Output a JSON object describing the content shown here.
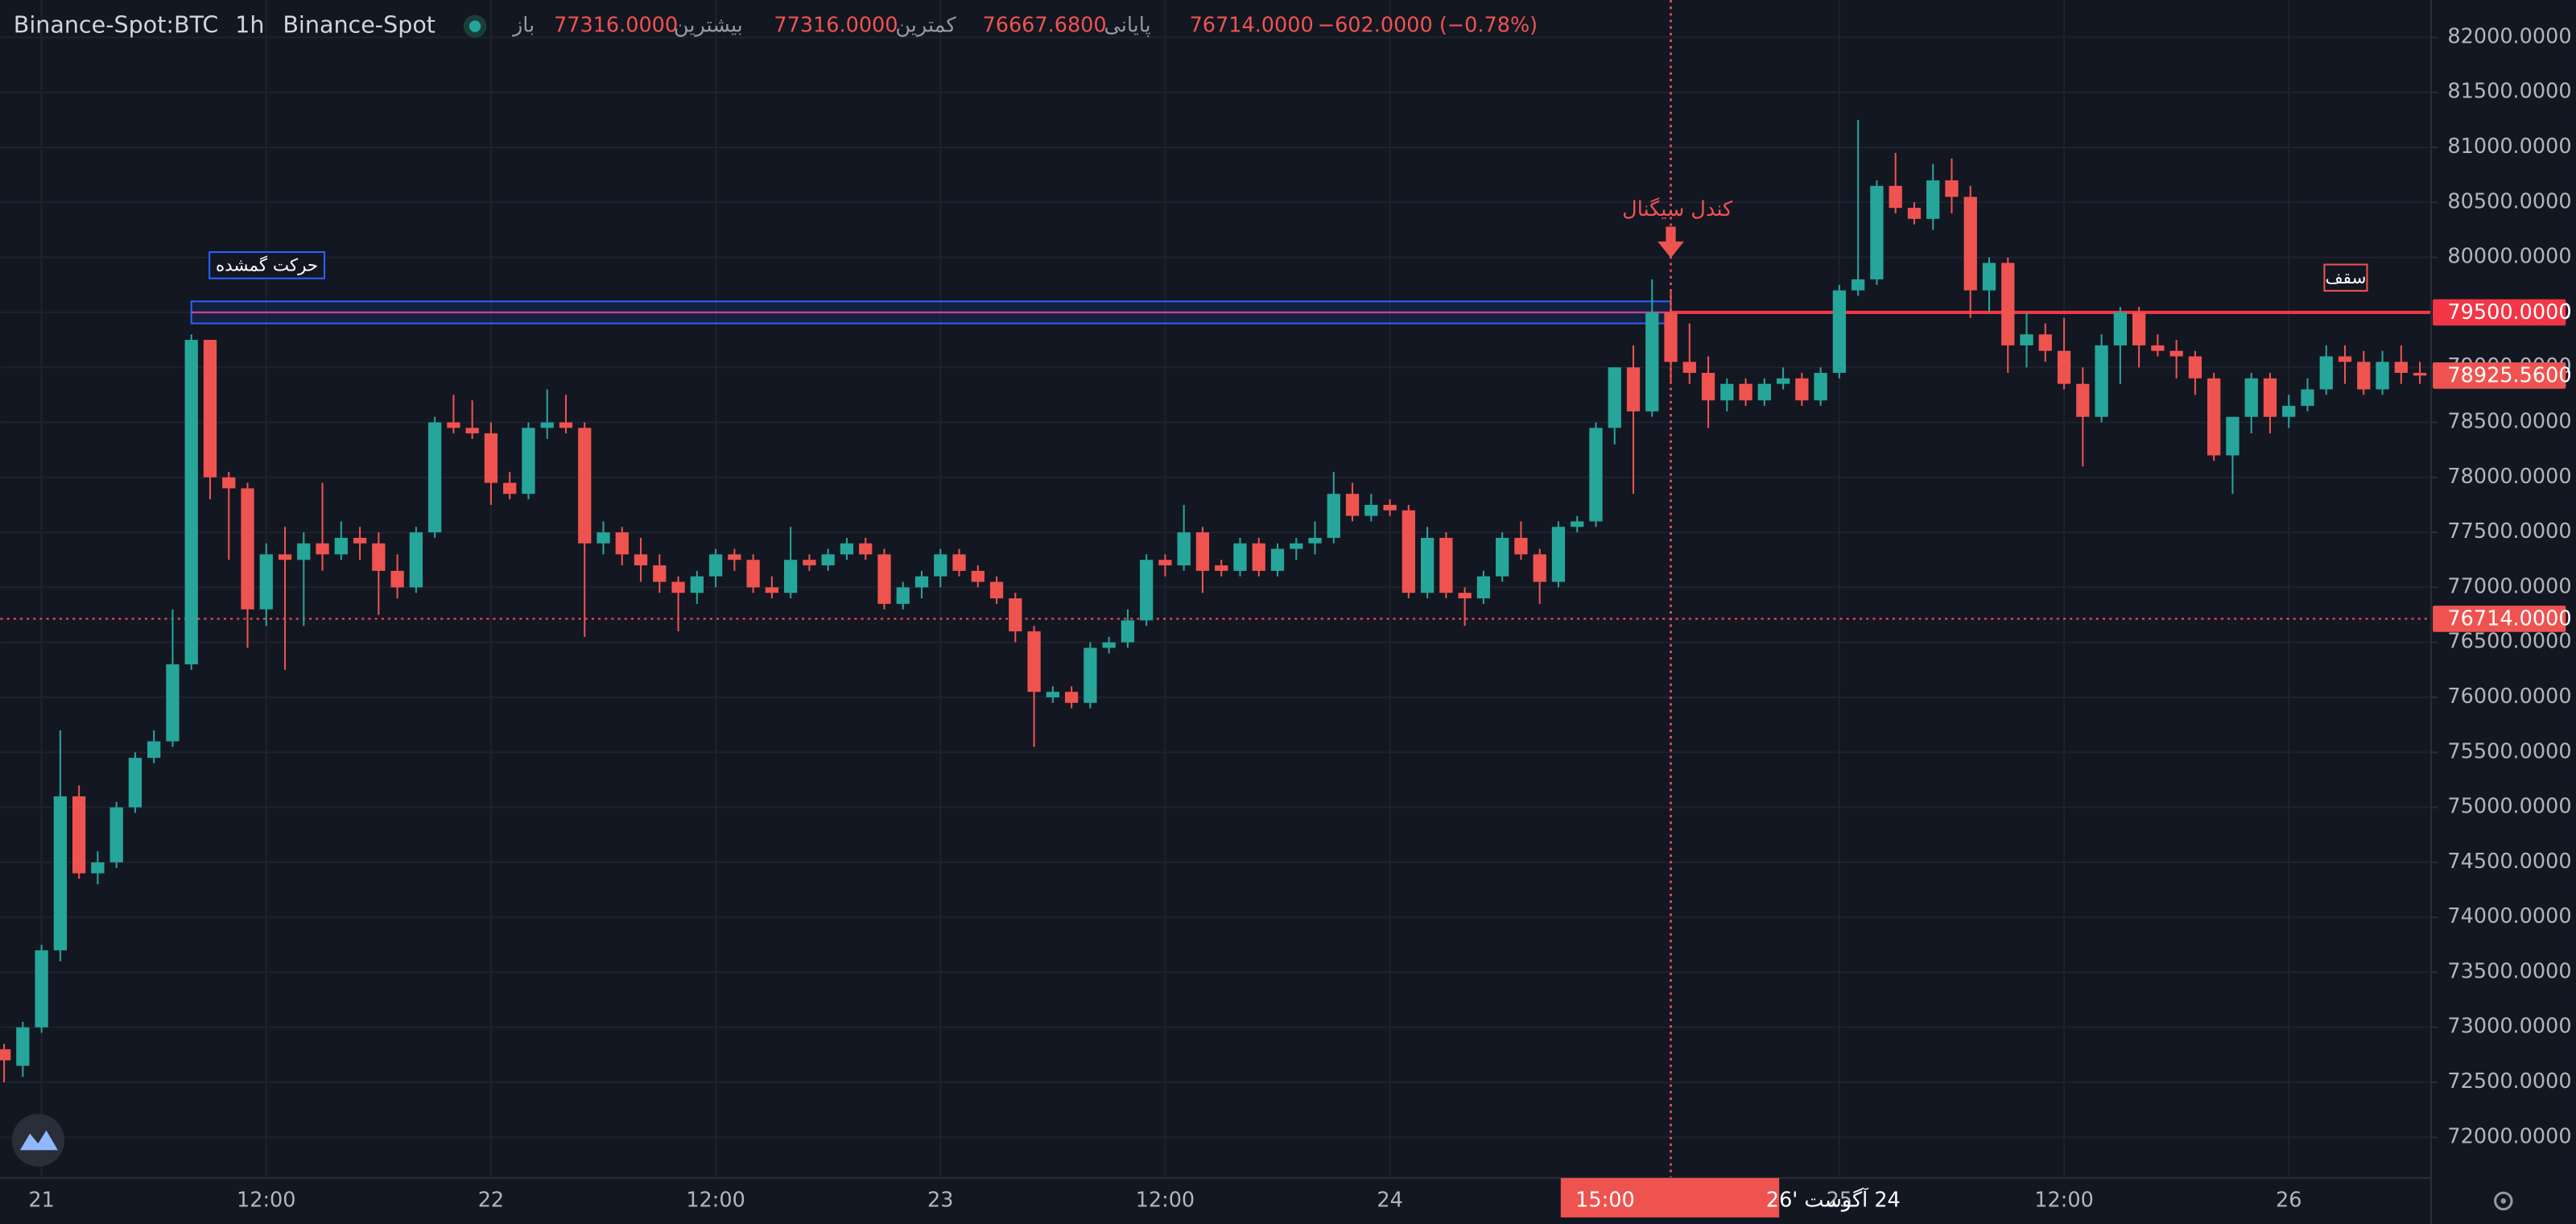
{
  "chart_data": {
    "type": "candlestick",
    "symbol": "Binance-Spot:BTC",
    "interval": "1h",
    "exchange": "Binance-Spot",
    "legend": [
      {
        "label": "باز",
        "value": "77316.0000"
      },
      {
        "label": "بیشترین",
        "value": "77316.0000"
      },
      {
        "label": "کمترین",
        "value": "76667.6800"
      },
      {
        "label": "پایانی",
        "value": "76714.0000"
      }
    ],
    "change": "−602.0000 (−0.78%)",
    "up_color": "#26a69a",
    "down_color": "#ef5350",
    "xlim": [
      -0.2,
      129.6
    ],
    "ylim": [
      71630,
      82340
    ],
    "xticks": [
      {
        "value": 2,
        "label": "21"
      },
      {
        "value": 14,
        "label": "12:00"
      },
      {
        "value": 26,
        "label": "22"
      },
      {
        "value": 38,
        "label": "12:00"
      },
      {
        "value": 50,
        "label": "23"
      },
      {
        "value": 62,
        "label": "12:00"
      },
      {
        "value": 74,
        "label": "24"
      },
      {
        "value": 98,
        "label": "25"
      },
      {
        "value": 110,
        "label": "12:00"
      },
      {
        "value": 122,
        "label": "26"
      }
    ],
    "yticks": [
      {
        "value": 72000,
        "label": "72000.0000"
      },
      {
        "value": 72500,
        "label": "72500.0000"
      },
      {
        "value": 73000,
        "label": "73000.0000"
      },
      {
        "value": 73500,
        "label": "73500.0000"
      },
      {
        "value": 74000,
        "label": "74000.0000"
      },
      {
        "value": 74500,
        "label": "74500.0000"
      },
      {
        "value": 75000,
        "label": "75000.0000"
      },
      {
        "value": 75500,
        "label": "75500.0000"
      },
      {
        "value": 76000,
        "label": "76000.0000"
      },
      {
        "value": 76500,
        "label": "76500.0000"
      },
      {
        "value": 77000,
        "label": "77000.0000"
      },
      {
        "value": 77500,
        "label": "77500.0000"
      },
      {
        "value": 78000,
        "label": "78000.0000"
      },
      {
        "value": 78500,
        "label": "78500.0000"
      },
      {
        "value": 79000,
        "label": "79000.0000"
      },
      {
        "value": 79500,
        "label": "79500.0000"
      },
      {
        "value": 80000,
        "label": "80000.0000"
      },
      {
        "value": 80500,
        "label": "80500.0000"
      },
      {
        "value": 81000,
        "label": "81000.0000"
      },
      {
        "value": 81500,
        "label": "81500.0000"
      },
      {
        "value": 82000,
        "label": "82000.0000"
      }
    ],
    "grid": true,
    "ohlc": [
      [
        72800,
        72850,
        72500,
        72700
      ],
      [
        72650,
        73050,
        72550,
        73000
      ],
      [
        73000,
        73750,
        72950,
        73700
      ],
      [
        73700,
        75700,
        73600,
        75100
      ],
      [
        75100,
        75200,
        74350,
        74400
      ],
      [
        74400,
        74600,
        74300,
        74500
      ],
      [
        74500,
        75050,
        74450,
        75000
      ],
      [
        75000,
        75500,
        74950,
        75450
      ],
      [
        75450,
        75700,
        75400,
        75600
      ],
      [
        75600,
        76800,
        75550,
        76300
      ],
      [
        76300,
        79300,
        76250,
        79250
      ],
      [
        79250,
        79250,
        77800,
        78000
      ],
      [
        78000,
        78050,
        77250,
        77900
      ],
      [
        77900,
        77950,
        76450,
        76800
      ],
      [
        76800,
        77400,
        76650,
        77300
      ],
      [
        77300,
        77550,
        76250,
        77250
      ],
      [
        77250,
        77500,
        76650,
        77400
      ],
      [
        77400,
        77950,
        77150,
        77300
      ],
      [
        77300,
        77600,
        77250,
        77450
      ],
      [
        77450,
        77550,
        77250,
        77400
      ],
      [
        77400,
        77500,
        76750,
        77150
      ],
      [
        77150,
        77300,
        76900,
        77000
      ],
      [
        77000,
        77550,
        76950,
        77500
      ],
      [
        77500,
        78550,
        77450,
        78500
      ],
      [
        78500,
        78750,
        78400,
        78450
      ],
      [
        78450,
        78700,
        78350,
        78400
      ],
      [
        78400,
        78500,
        77750,
        77950
      ],
      [
        77950,
        78050,
        77800,
        77850
      ],
      [
        77850,
        78500,
        77800,
        78450
      ],
      [
        78450,
        78800,
        78350,
        78500
      ],
      [
        78500,
        78750,
        78400,
        78450
      ],
      [
        78450,
        78500,
        76550,
        77400
      ],
      [
        77400,
        77600,
        77300,
        77500
      ],
      [
        77500,
        77550,
        77200,
        77300
      ],
      [
        77300,
        77450,
        77050,
        77200
      ],
      [
        77200,
        77300,
        76950,
        77050
      ],
      [
        77050,
        77100,
        76600,
        76950
      ],
      [
        76950,
        77150,
        76850,
        77100
      ],
      [
        77100,
        77350,
        77000,
        77300
      ],
      [
        77300,
        77350,
        77150,
        77250
      ],
      [
        77250,
        77300,
        76950,
        77000
      ],
      [
        77000,
        77100,
        76900,
        76950
      ],
      [
        76950,
        77550,
        76900,
        77250
      ],
      [
        77250,
        77300,
        77150,
        77200
      ],
      [
        77200,
        77350,
        77150,
        77300
      ],
      [
        77300,
        77450,
        77250,
        77400
      ],
      [
        77400,
        77450,
        77250,
        77300
      ],
      [
        77300,
        77350,
        76800,
        76850
      ],
      [
        76850,
        77050,
        76800,
        77000
      ],
      [
        77000,
        77150,
        76900,
        77100
      ],
      [
        77100,
        77350,
        77000,
        77300
      ],
      [
        77300,
        77350,
        77100,
        77150
      ],
      [
        77150,
        77200,
        77000,
        77050
      ],
      [
        77050,
        77100,
        76850,
        76900
      ],
      [
        76900,
        76950,
        76500,
        76600
      ],
      [
        76600,
        76650,
        75550,
        76050
      ],
      [
        76000,
        76100,
        75950,
        76050
      ],
      [
        76050,
        76100,
        75900,
        75950
      ],
      [
        75950,
        76500,
        75900,
        76450
      ],
      [
        76450,
        76550,
        76400,
        76500
      ],
      [
        76500,
        76800,
        76450,
        76700
      ],
      [
        76700,
        77300,
        76650,
        77250
      ],
      [
        77250,
        77300,
        77100,
        77200
      ],
      [
        77200,
        77750,
        77150,
        77500
      ],
      [
        77500,
        77550,
        76950,
        77150
      ],
      [
        77200,
        77250,
        77100,
        77150
      ],
      [
        77150,
        77450,
        77100,
        77400
      ],
      [
        77400,
        77450,
        77100,
        77150
      ],
      [
        77150,
        77400,
        77100,
        77350
      ],
      [
        77350,
        77450,
        77250,
        77400
      ],
      [
        77400,
        77600,
        77300,
        77450
      ],
      [
        77450,
        78050,
        77400,
        77850
      ],
      [
        77850,
        77950,
        77600,
        77650
      ],
      [
        77650,
        77850,
        77600,
        77750
      ],
      [
        77750,
        77800,
        77650,
        77700
      ],
      [
        77700,
        77750,
        76900,
        76950
      ],
      [
        76950,
        77550,
        76900,
        77450
      ],
      [
        77450,
        77500,
        76900,
        76950
      ],
      [
        76950,
        77000,
        76650,
        76900
      ],
      [
        76900,
        77150,
        76850,
        77100
      ],
      [
        77100,
        77500,
        77050,
        77450
      ],
      [
        77450,
        77600,
        77250,
        77300
      ],
      [
        77300,
        77350,
        76850,
        77050
      ],
      [
        77050,
        77600,
        77000,
        77550
      ],
      [
        77550,
        77650,
        77500,
        77600
      ],
      [
        77600,
        78500,
        77550,
        78450
      ],
      [
        78450,
        79000,
        78300,
        79000
      ],
      [
        79000,
        79200,
        77850,
        78600
      ],
      [
        78600,
        79800,
        78550,
        79500
      ],
      [
        79500,
        79700,
        78850,
        79050
      ],
      [
        79050,
        79400,
        78850,
        78950
      ],
      [
        78950,
        79100,
        78450,
        78700
      ],
      [
        78700,
        78900,
        78600,
        78850
      ],
      [
        78850,
        78900,
        78650,
        78700
      ],
      [
        78700,
        78900,
        78650,
        78850
      ],
      [
        78850,
        79000,
        78800,
        78900
      ],
      [
        78900,
        78950,
        78650,
        78700
      ],
      [
        78700,
        79000,
        78650,
        78950
      ],
      [
        78950,
        79750,
        78900,
        79700
      ],
      [
        79700,
        81250,
        79650,
        79800
      ],
      [
        79800,
        80700,
        79750,
        80650
      ],
      [
        80650,
        80950,
        80400,
        80450
      ],
      [
        80450,
        80500,
        80300,
        80350
      ],
      [
        80350,
        80850,
        80250,
        80700
      ],
      [
        80700,
        80900,
        80400,
        80550
      ],
      [
        80550,
        80650,
        79450,
        79700
      ],
      [
        79700,
        80000,
        79500,
        79950
      ],
      [
        79950,
        80000,
        78950,
        79200
      ],
      [
        79200,
        79500,
        79000,
        79300
      ],
      [
        79300,
        79400,
        79050,
        79150
      ],
      [
        79150,
        79450,
        78800,
        78850
      ],
      [
        78850,
        79000,
        78100,
        78550
      ],
      [
        78550,
        79300,
        78500,
        79200
      ],
      [
        79200,
        79550,
        78850,
        79500
      ],
      [
        79500,
        79550,
        79000,
        79200
      ],
      [
        79200,
        79300,
        79100,
        79150
      ],
      [
        79150,
        79250,
        78900,
        79100
      ],
      [
        79100,
        79150,
        78750,
        78900
      ],
      [
        78900,
        78950,
        78150,
        78200
      ],
      [
        78200,
        78550,
        77850,
        78550
      ],
      [
        78550,
        78950,
        78400,
        78900
      ],
      [
        78900,
        78950,
        78400,
        78550
      ],
      [
        78550,
        78750,
        78450,
        78650
      ],
      [
        78650,
        78900,
        78600,
        78800
      ],
      [
        78800,
        79200,
        78750,
        79100
      ],
      [
        79100,
        79200,
        78850,
        79050
      ],
      [
        79050,
        79150,
        78750,
        78800
      ],
      [
        78800,
        79150,
        78750,
        79050
      ],
      [
        79050,
        79200,
        78850,
        78950
      ],
      [
        78950,
        79050,
        78850,
        78925.56
      ]
    ],
    "zone": {
      "label": "حرکت گمشده",
      "from": 10,
      "to": 89,
      "top": 79600,
      "bottom": 79400,
      "mid": 79500
    },
    "resistance": {
      "value": 79500,
      "label": "79500.0000",
      "from": 89
    },
    "last_price": {
      "value": 78925.56,
      "label": "78925.5600"
    },
    "hover_price": {
      "value": 76714,
      "label": "76714.0000"
    },
    "crosshair": {
      "index": 89,
      "time": "15:00",
      "date": "24 آگوست '26"
    },
    "signal": {
      "label": "کندل سیگنال",
      "index": 89
    },
    "top_label": "سقف"
  }
}
